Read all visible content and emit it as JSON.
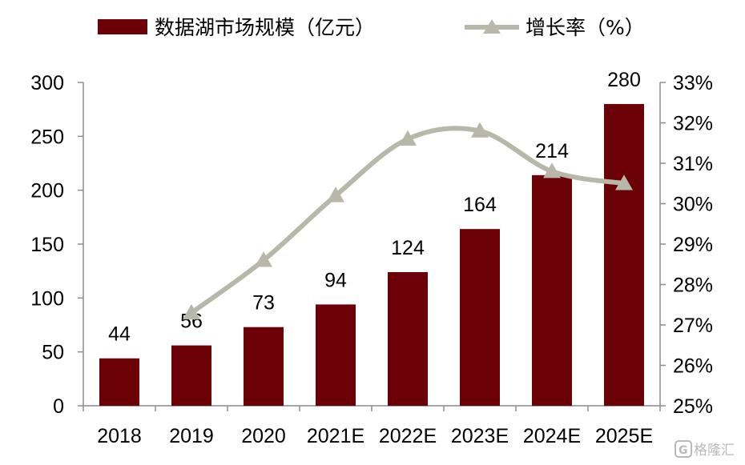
{
  "chart_data": {
    "type": "bar",
    "categories": [
      "2018",
      "2019",
      "2020",
      "2021E",
      "2022E",
      "2023E",
      "2024E",
      "2025E"
    ],
    "series": [
      {
        "name": "数据湖市场规模（亿元）",
        "type": "bar",
        "axis": "left",
        "color": "#6b0006",
        "values": [
          44,
          56,
          73,
          94,
          124,
          164,
          214,
          280
        ]
      },
      {
        "name": "增长率（%）",
        "type": "line",
        "axis": "right",
        "color": "#b8b8aa",
        "marker": "triangle",
        "values": [
          null,
          27.3,
          28.6,
          30.2,
          31.6,
          31.8,
          30.8,
          30.5
        ]
      }
    ],
    "y_left": {
      "min": 0,
      "max": 300,
      "ticks": [
        "0",
        "50",
        "100",
        "150",
        "200",
        "250",
        "300"
      ]
    },
    "y_right": {
      "min": 25,
      "max": 33,
      "ticks": [
        "25%",
        "26%",
        "27%",
        "28%",
        "29%",
        "30%",
        "31%",
        "32%",
        "33%"
      ]
    },
    "data_labels": [
      "44",
      "56",
      "73",
      "94",
      "124",
      "164",
      "214",
      "280"
    ],
    "grid": false,
    "legend": "top"
  },
  "watermark": {
    "text": "格隆汇",
    "icon": "logo-g-icon"
  }
}
